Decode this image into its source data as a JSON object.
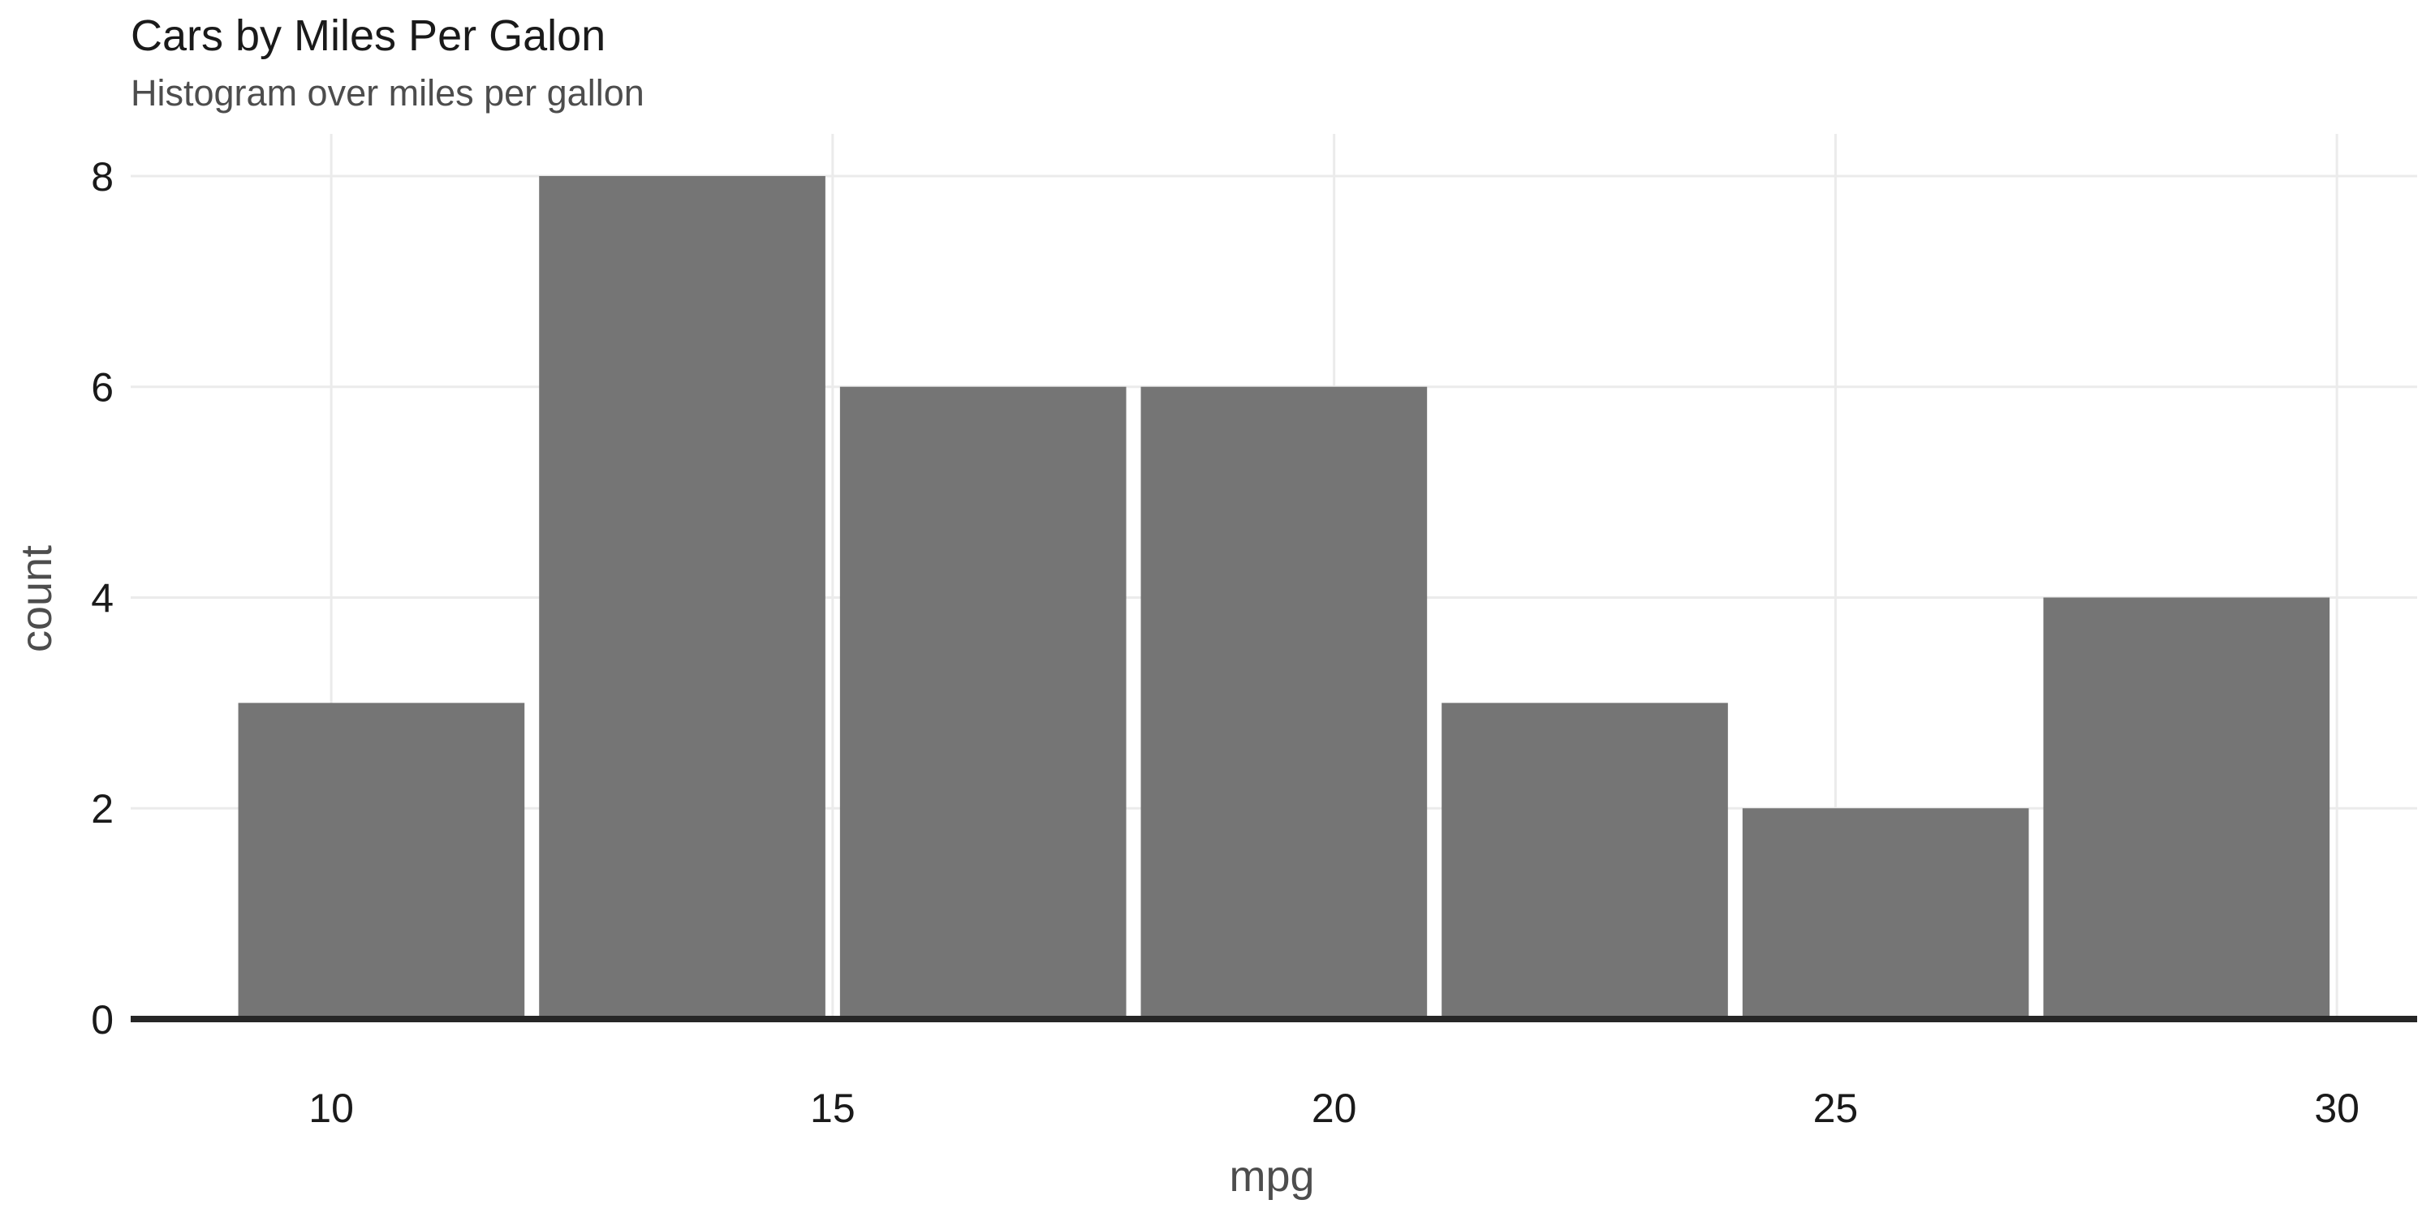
{
  "chart_data": {
    "type": "bar",
    "title": "Cars by Miles Per Galon",
    "subtitle": "Histogram over miles per gallon",
    "xlabel": "mpg",
    "ylabel": "count",
    "bins": [
      {
        "x0": 9.0,
        "x1": 12.0,
        "count": 3
      },
      {
        "x0": 12.0,
        "x1": 15.0,
        "count": 8
      },
      {
        "x0": 15.0,
        "x1": 18.0,
        "count": 6
      },
      {
        "x0": 18.0,
        "x1": 21.0,
        "count": 6
      },
      {
        "x0": 21.0,
        "x1": 24.0,
        "count": 3
      },
      {
        "x0": 24.0,
        "x1": 27.0,
        "count": 2
      },
      {
        "x0": 27.0,
        "x1": 30.0,
        "count": 4
      }
    ],
    "xlim": [
      8.0,
      30.8
    ],
    "ylim": [
      0,
      8.4
    ],
    "x_ticks": [
      10,
      15,
      20,
      25,
      30
    ],
    "y_ticks": [
      0,
      2,
      4,
      6,
      8
    ],
    "grid": true,
    "colors": {
      "bar": "#757575",
      "grid": "#ebebeb",
      "baseline": "#262626"
    }
  }
}
